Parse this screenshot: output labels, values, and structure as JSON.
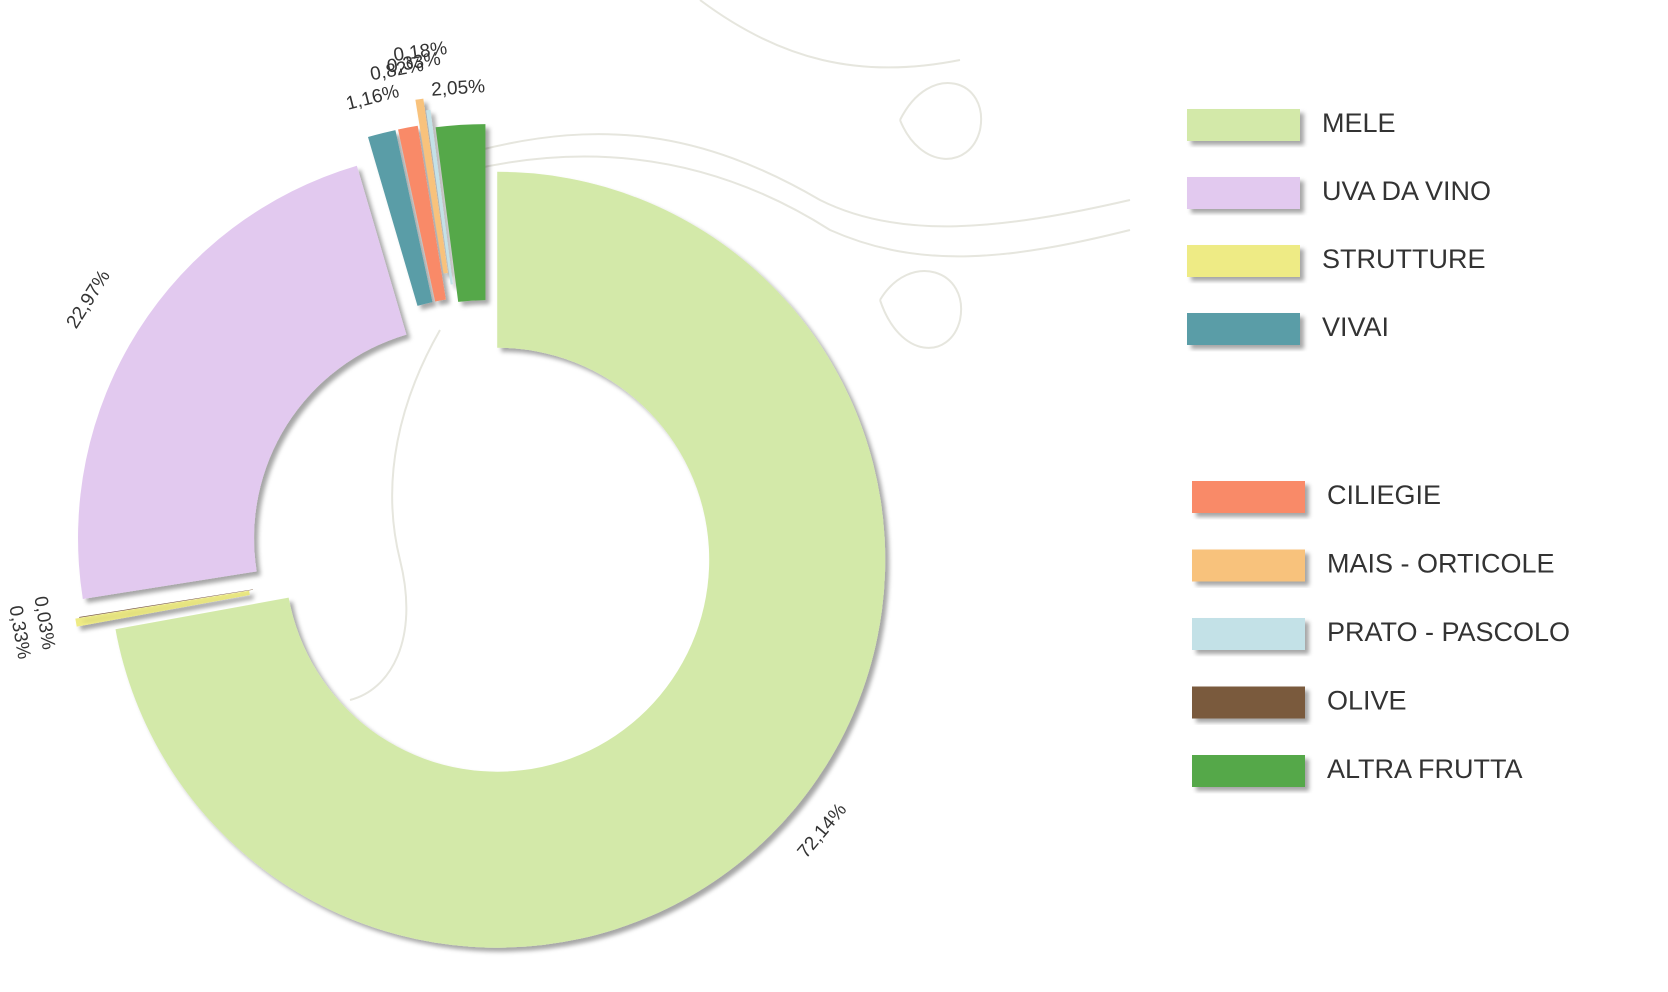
{
  "chart_data": {
    "type": "donut",
    "categories": [
      "MELE",
      "UVA DA VINO",
      "STRUTTURE",
      "VIVAI",
      "CILIEGIE",
      "MAIS - ORTICOLE",
      "PRATO - PASCOLO",
      "OLIVE",
      "ALTRA FRUTTA"
    ],
    "values": [
      72.14,
      22.97,
      0.33,
      1.16,
      0.82,
      0.33,
      0.18,
      0.03,
      2.05
    ],
    "value_labels": [
      "72,14%",
      "22,97%",
      "0,33%",
      "1,16%",
      "0,82%",
      "0,33%",
      "0,18%",
      "0,03%",
      "2,05%"
    ],
    "colors": [
      "#d3e9a9",
      "#e2c9ef",
      "#eeeb85",
      "#5a9da7",
      "#f98a67",
      "#f8c27c",
      "#c3e1e7",
      "#7a5a3c",
      "#54a849"
    ]
  }
}
